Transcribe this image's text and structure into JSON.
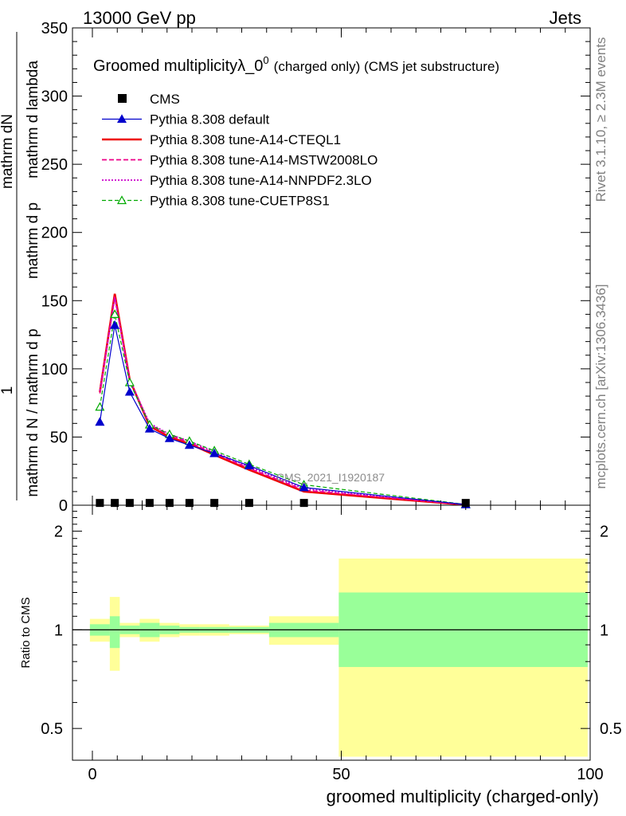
{
  "header": {
    "left": "13000 GeV pp",
    "right": "Jets"
  },
  "side_labels": {
    "rivet": "Rivet 3.1.10, ≥ 2.3M events",
    "mcplots": "mcplots.cern.ch [arXiv:1306.3436]"
  },
  "chart_data": [
    {
      "type": "line",
      "title_main": "Groomed multiplicityλ_0",
      "title_sup": "0",
      "title_tail": "(charged only) (CMS jet substructure)",
      "ylabel_numerator": "mathrm dN",
      "ylabel_one": "1",
      "ylabel_denominator": "mathrm d N / mathrm d p",
      "ylabel_numerator_b": "mathrm d p",
      "ylabel_rest": "mathrm d lambda",
      "ylabel_full": "1 / (mathrm d N / mathrm d p_T) · mathrm dN / (mathrm d p_T mathrm d lambda)",
      "watermark": "CMS_2021_I1920187",
      "xlim": [
        -4,
        100
      ],
      "ylim": [
        0,
        350
      ],
      "yticks": [
        0,
        50,
        100,
        150,
        200,
        250,
        300,
        350
      ],
      "ytick_labels": [
        "0",
        "50",
        "100",
        "150",
        "200",
        "250",
        "300",
        "350"
      ],
      "legend_position": "top-left",
      "series": [
        {
          "name": "CMS",
          "color": "#000000",
          "style": "marker-square",
          "x": [
            1.5,
            4.5,
            7.5,
            11.5,
            15.5,
            19.5,
            24.5,
            31.5,
            42.5,
            75
          ],
          "y": [
            0.5,
            0.5,
            0.5,
            0.5,
            0.5,
            0.5,
            0.5,
            0.5,
            0.5,
            0.5
          ]
        },
        {
          "name": "Pythia 8.308 default",
          "color": "#0000cc",
          "style": "solid-thin-triangle",
          "x": [
            1.5,
            4.5,
            7.5,
            11.5,
            15.5,
            19.5,
            24.5,
            31.5,
            42.5,
            75
          ],
          "y": [
            61,
            132,
            83,
            56,
            49,
            44,
            38,
            29,
            13,
            0.5
          ]
        },
        {
          "name": "Pythia 8.308 tune-A14-CTEQL1",
          "color": "#ee0000",
          "style": "solid-thick",
          "x": [
            1.5,
            4.5,
            7.5,
            11.5,
            15.5,
            19.5,
            24.5,
            31.5,
            42.5,
            75
          ],
          "y": [
            83,
            155,
            92,
            58,
            50,
            45,
            37,
            26,
            10,
            0.3
          ]
        },
        {
          "name": "Pythia 8.308 tune-A14-MSTW2008LO",
          "color": "#ee0088",
          "style": "dashed",
          "x": [
            1.5,
            4.5,
            7.5,
            11.5,
            15.5,
            19.5,
            24.5,
            31.5,
            42.5,
            75
          ],
          "y": [
            82,
            153,
            91,
            59,
            51,
            46,
            38,
            27,
            11,
            0.4
          ]
        },
        {
          "name": "Pythia 8.308 tune-A14-NNPDF2.3LO",
          "color": "#cc00cc",
          "style": "dotted",
          "x": [
            1.5,
            4.5,
            7.5,
            11.5,
            15.5,
            19.5,
            24.5,
            31.5,
            42.5,
            75
          ],
          "y": [
            84,
            152,
            92,
            60,
            52,
            47,
            39,
            28,
            12,
            0.4
          ]
        },
        {
          "name": "Pythia 8.308 tune-CUETP8S1",
          "color": "#00aa00",
          "style": "dashed-open-triangle",
          "x": [
            1.5,
            4.5,
            7.5,
            11.5,
            15.5,
            19.5,
            24.5,
            31.5,
            42.5,
            75
          ],
          "y": [
            72,
            140,
            90,
            59,
            52,
            47,
            40,
            30,
            15,
            0.6
          ]
        }
      ]
    },
    {
      "type": "area",
      "ylabel": "Ratio to CMS",
      "xlabel": "groomed multiplicity (charged-only)",
      "xlim": [
        -4,
        100
      ],
      "ylim": [
        0.4,
        2.4
      ],
      "yticks": [
        0.5,
        1,
        2
      ],
      "ytick_labels": [
        "0.5",
        "1",
        "2"
      ],
      "xticks": [
        0,
        50,
        100
      ],
      "xtick_labels": [
        "0",
        "50",
        "100"
      ],
      "reference_line": 1,
      "bins": [
        {
          "x0": -0.5,
          "x1": 3.5,
          "stat_lo": 0.96,
          "stat_hi": 1.04,
          "tot_lo": 0.92,
          "tot_hi": 1.08
        },
        {
          "x0": 3.5,
          "x1": 5.5,
          "stat_lo": 0.88,
          "stat_hi": 1.1,
          "tot_lo": 0.75,
          "tot_hi": 1.26
        },
        {
          "x0": 5.5,
          "x1": 9.5,
          "stat_lo": 0.97,
          "stat_hi": 1.03,
          "tot_lo": 0.95,
          "tot_hi": 1.05
        },
        {
          "x0": 9.5,
          "x1": 13.5,
          "stat_lo": 0.95,
          "stat_hi": 1.05,
          "tot_lo": 0.92,
          "tot_hi": 1.08
        },
        {
          "x0": 13.5,
          "x1": 17.5,
          "stat_lo": 0.97,
          "stat_hi": 1.03,
          "tot_lo": 0.95,
          "tot_hi": 1.05
        },
        {
          "x0": 17.5,
          "x1": 21.5,
          "stat_lo": 0.98,
          "stat_hi": 1.02,
          "tot_lo": 0.96,
          "tot_hi": 1.04
        },
        {
          "x0": 21.5,
          "x1": 27.5,
          "stat_lo": 0.98,
          "stat_hi": 1.02,
          "tot_lo": 0.96,
          "tot_hi": 1.04
        },
        {
          "x0": 27.5,
          "x1": 35.5,
          "stat_lo": 0.98,
          "stat_hi": 1.02,
          "tot_lo": 0.97,
          "tot_hi": 1.03
        },
        {
          "x0": 35.5,
          "x1": 49.5,
          "stat_lo": 0.95,
          "stat_hi": 1.05,
          "tot_lo": 0.9,
          "tot_hi": 1.1
        },
        {
          "x0": 49.5,
          "x1": 99.5,
          "stat_lo": 0.77,
          "stat_hi": 1.3,
          "tot_lo": 0.41,
          "tot_hi": 1.65
        }
      ]
    }
  ]
}
